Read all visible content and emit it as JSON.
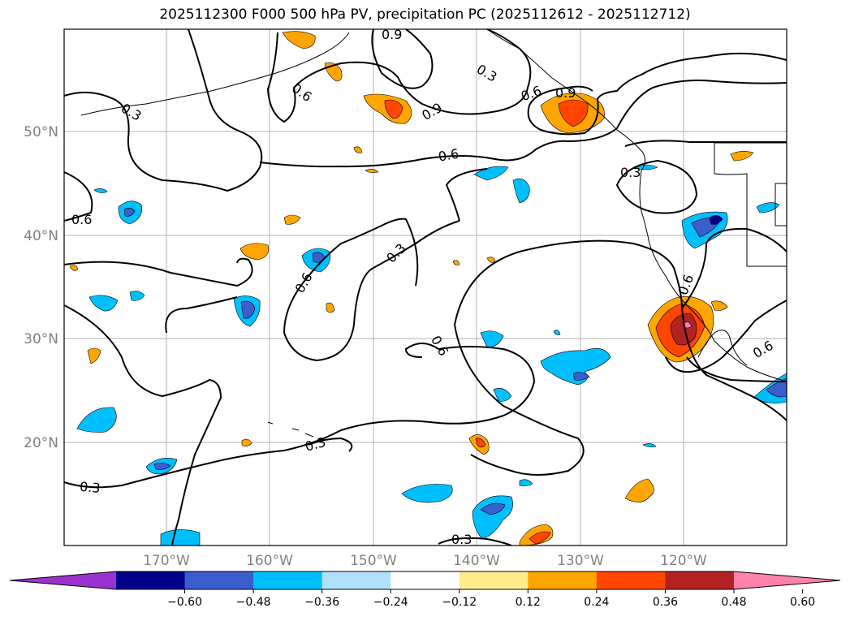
{
  "title": "2025112300 F000 500 hPa PV, precipitation PC (2025112612 - 2025112712)",
  "map": {
    "lat_labels": [
      "50°N",
      "40°N",
      "30°N",
      "20°N"
    ],
    "lon_labels": [
      "170°W",
      "160°W",
      "150°W",
      "140°W",
      "130°W",
      "120°W"
    ],
    "pv_contour_labels": [
      "0.3",
      "0.6",
      "0.9",
      "0.3",
      "0.6",
      "0.9",
      "0.6",
      "0.3",
      "0.6",
      "0.3",
      "0.6",
      "0.6",
      "0.6",
      "0.3",
      "0.3",
      "0.3",
      "0.9",
      "0.6"
    ]
  },
  "colorbar": {
    "colors": [
      "#9a32cd",
      "#00008b",
      "#3a5fcd",
      "#00bfff",
      "#b0e2ff",
      "#ffffff",
      "#ffec8b",
      "#ffa500",
      "#ff4500",
      "#b22222",
      "#ff82ab"
    ],
    "tick_labels": [
      "−0.60",
      "−0.48",
      "−0.36",
      "−0.24",
      "−0.12",
      "0.12",
      "0.24",
      "0.36",
      "0.48",
      "0.60"
    ]
  },
  "legend_colors": {
    "neg_light": "#b0e2ff",
    "neg_mid": "#00bfff",
    "neg_strong": "#3a5fcd",
    "neg_max": "#00008b",
    "pos_light": "#ffa500",
    "pos_mid": "#ff4500",
    "pos_strong": "#b22222",
    "pos_max": "#ff82ab"
  }
}
